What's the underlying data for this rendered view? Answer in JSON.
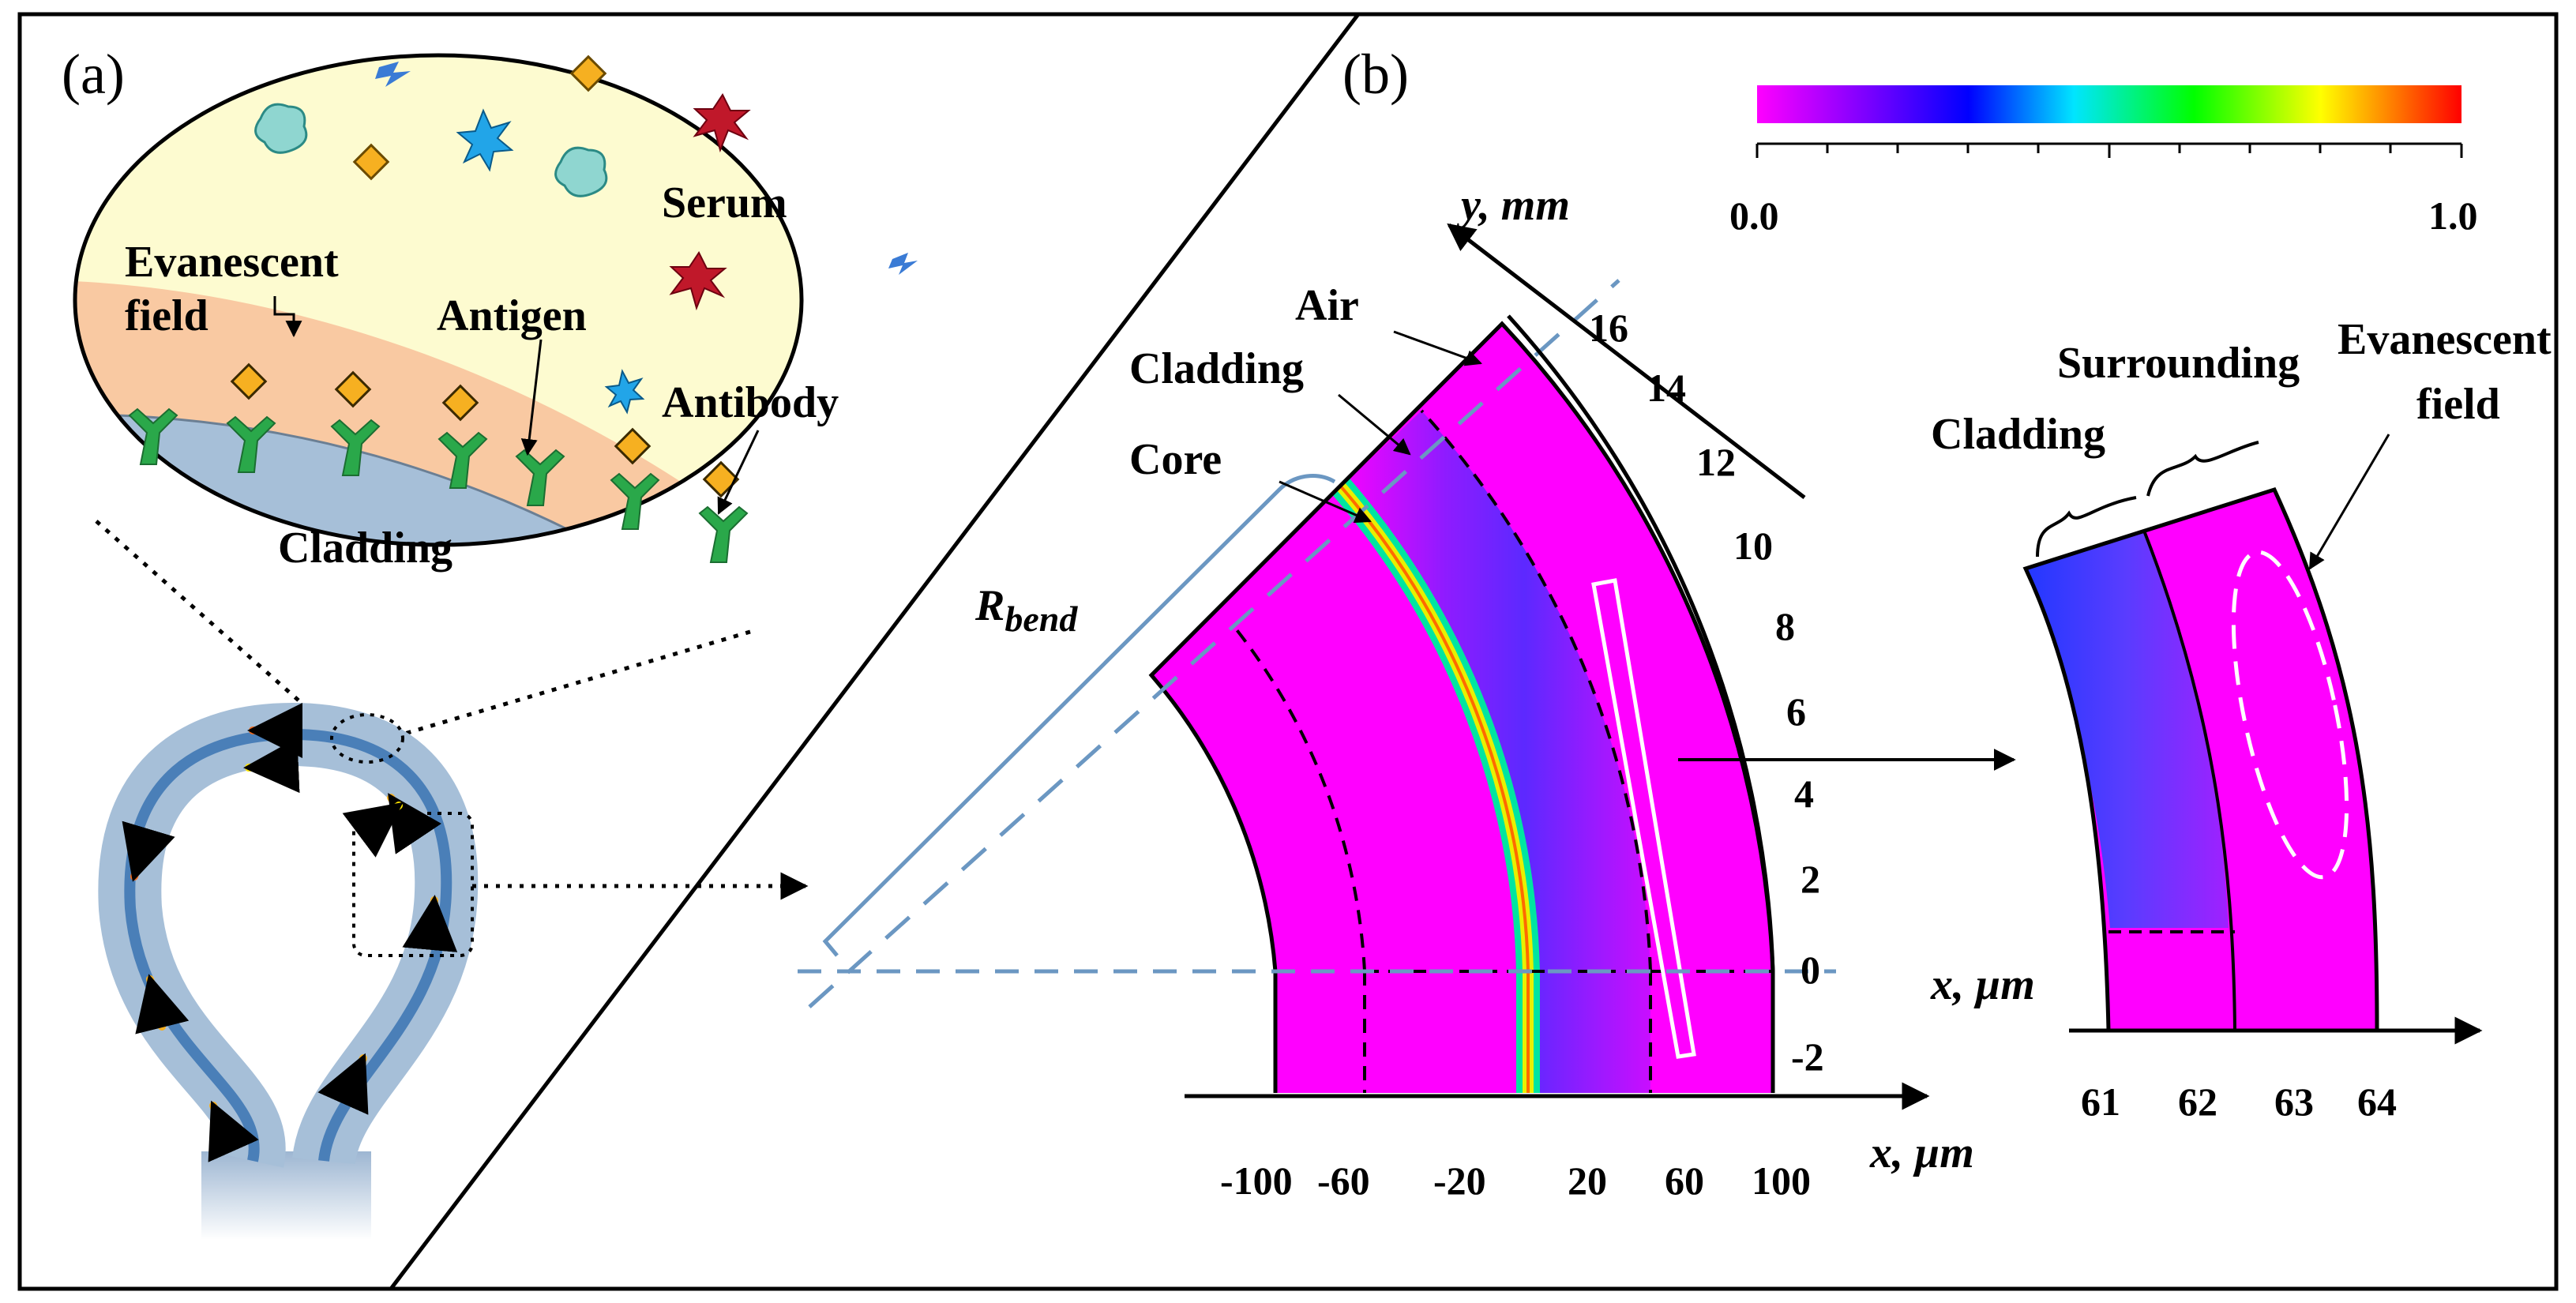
{
  "panel_a": {
    "label": "(a)",
    "serum": "Serum",
    "evanescent_line1": "Evanescent",
    "evanescent_line2": "field",
    "antigen": "Antigen",
    "antibody": "Antibody",
    "cladding": "Cladding"
  },
  "panel_b": {
    "label": "(b)",
    "colorbar_min": "0.0",
    "colorbar_max": "1.0",
    "y_axis_label": "y, mm",
    "x_axis_label": "x, µm",
    "y_ticks": [
      "16",
      "14",
      "12",
      "10",
      "8",
      "6",
      "4",
      "2",
      "0",
      "-2"
    ],
    "x_ticks": [
      "-100",
      "-60",
      "-20",
      "20",
      "60",
      "100"
    ],
    "air": "Air",
    "cladding": "Cladding",
    "core": "Core",
    "r_bend_main": "R",
    "r_bend_sub": "bend",
    "inset": {
      "surrounding": "Surrounding",
      "cladding": "Cladding",
      "evanescent_line1": "Evanescent",
      "evanescent_line2": "field",
      "x_axis_label": "x, µm",
      "x_ticks": [
        "61",
        "62",
        "63",
        "64"
      ]
    }
  },
  "colors": {
    "serum_bg": "#fdfbd0",
    "evanescent_band": "#f9c9a2",
    "cladding_blue": "#a6bfd8",
    "field_magenta": "#ff00ff",
    "core_yellow": "#e8f000",
    "antibody_green": "#2aa84a",
    "antigen_orange": "#f6b021",
    "guide_blue": "#6b97c2"
  }
}
